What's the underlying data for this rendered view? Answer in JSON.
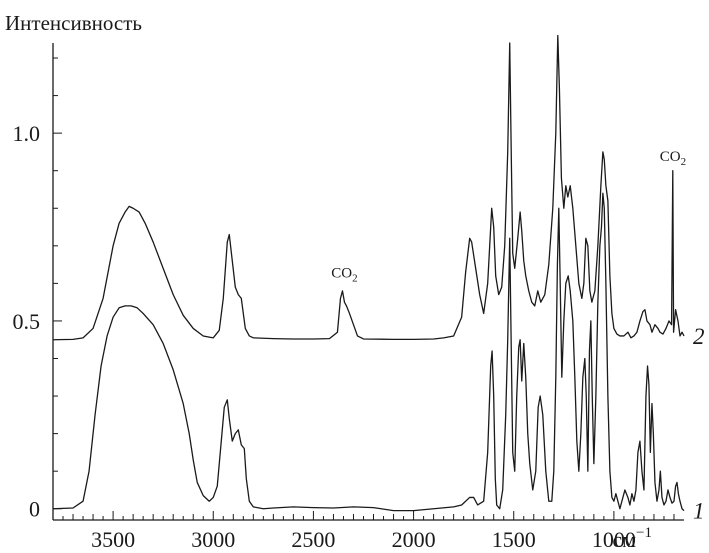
{
  "chart_data": {
    "type": "line",
    "title": "",
    "ylabel": "Интенсивность",
    "xunit": "см",
    "xunit_sup": "−1",
    "xlim": [
      3800,
      650
    ],
    "ylim": [
      -0.03,
      1.24
    ],
    "x_ticks": [
      3500,
      3000,
      2500,
      2000,
      1500,
      1000
    ],
    "y_ticks": [
      0,
      0.5,
      1.0
    ],
    "y_tick_labels": [
      "0",
      "0.5",
      "1.0"
    ],
    "grid": false,
    "legend": "none",
    "line_color": "#1a1a1a",
    "annotations": [
      {
        "text": "CO",
        "sub": "2",
        "x": 2345,
        "y": 0.595
      },
      {
        "text": "CO",
        "sub": "2",
        "x": 705,
        "y": 0.905
      }
    ],
    "series": [
      {
        "label": "2",
        "points": [
          [
            3800,
            0.45
          ],
          [
            3700,
            0.451
          ],
          [
            3650,
            0.455
          ],
          [
            3600,
            0.48
          ],
          [
            3550,
            0.56
          ],
          [
            3500,
            0.7
          ],
          [
            3470,
            0.76
          ],
          [
            3440,
            0.79
          ],
          [
            3420,
            0.805
          ],
          [
            3400,
            0.8
          ],
          [
            3370,
            0.79
          ],
          [
            3340,
            0.76
          ],
          [
            3300,
            0.71
          ],
          [
            3250,
            0.64
          ],
          [
            3200,
            0.57
          ],
          [
            3150,
            0.515
          ],
          [
            3100,
            0.48
          ],
          [
            3050,
            0.46
          ],
          [
            3000,
            0.455
          ],
          [
            2970,
            0.475
          ],
          [
            2950,
            0.56
          ],
          [
            2930,
            0.71
          ],
          [
            2920,
            0.73
          ],
          [
            2905,
            0.66
          ],
          [
            2890,
            0.59
          ],
          [
            2875,
            0.57
          ],
          [
            2860,
            0.56
          ],
          [
            2850,
            0.52
          ],
          [
            2840,
            0.48
          ],
          [
            2820,
            0.46
          ],
          [
            2800,
            0.455
          ],
          [
            2700,
            0.453
          ],
          [
            2600,
            0.452
          ],
          [
            2500,
            0.452
          ],
          [
            2420,
            0.453
          ],
          [
            2380,
            0.47
          ],
          [
            2365,
            0.56
          ],
          [
            2355,
            0.58
          ],
          [
            2345,
            0.55
          ],
          [
            2335,
            0.54
          ],
          [
            2320,
            0.52
          ],
          [
            2300,
            0.49
          ],
          [
            2280,
            0.46
          ],
          [
            2250,
            0.452
          ],
          [
            2100,
            0.451
          ],
          [
            2000,
            0.451
          ],
          [
            1900,
            0.452
          ],
          [
            1850,
            0.455
          ],
          [
            1800,
            0.46
          ],
          [
            1760,
            0.51
          ],
          [
            1740,
            0.63
          ],
          [
            1720,
            0.72
          ],
          [
            1710,
            0.71
          ],
          [
            1690,
            0.64
          ],
          [
            1670,
            0.57
          ],
          [
            1650,
            0.52
          ],
          [
            1630,
            0.6
          ],
          [
            1610,
            0.8
          ],
          [
            1600,
            0.75
          ],
          [
            1590,
            0.62
          ],
          [
            1575,
            0.57
          ],
          [
            1560,
            0.59
          ],
          [
            1545,
            0.7
          ],
          [
            1530,
            0.95
          ],
          [
            1520,
            1.24
          ],
          [
            1512,
            0.93
          ],
          [
            1505,
            0.68
          ],
          [
            1495,
            0.64
          ],
          [
            1480,
            0.72
          ],
          [
            1468,
            0.79
          ],
          [
            1460,
            0.74
          ],
          [
            1450,
            0.66
          ],
          [
            1440,
            0.62
          ],
          [
            1425,
            0.58
          ],
          [
            1410,
            0.55
          ],
          [
            1395,
            0.54
          ],
          [
            1380,
            0.58
          ],
          [
            1365,
            0.55
          ],
          [
            1345,
            0.57
          ],
          [
            1325,
            0.65
          ],
          [
            1305,
            0.8
          ],
          [
            1290,
            1.0
          ],
          [
            1280,
            1.26
          ],
          [
            1272,
            1.12
          ],
          [
            1262,
            0.88
          ],
          [
            1250,
            0.8
          ],
          [
            1240,
            0.86
          ],
          [
            1230,
            0.83
          ],
          [
            1218,
            0.86
          ],
          [
            1205,
            0.8
          ],
          [
            1190,
            0.7
          ],
          [
            1175,
            0.6
          ],
          [
            1160,
            0.56
          ],
          [
            1150,
            0.6
          ],
          [
            1140,
            0.72
          ],
          [
            1130,
            0.7
          ],
          [
            1120,
            0.58
          ],
          [
            1110,
            0.55
          ],
          [
            1095,
            0.58
          ],
          [
            1080,
            0.7
          ],
          [
            1065,
            0.86
          ],
          [
            1055,
            0.95
          ],
          [
            1048,
            0.93
          ],
          [
            1040,
            0.86
          ],
          [
            1030,
            0.82
          ],
          [
            1020,
            0.62
          ],
          [
            1010,
            0.52
          ],
          [
            1000,
            0.48
          ],
          [
            985,
            0.465
          ],
          [
            970,
            0.46
          ],
          [
            950,
            0.46
          ],
          [
            930,
            0.47
          ],
          [
            915,
            0.455
          ],
          [
            900,
            0.46
          ],
          [
            885,
            0.47
          ],
          [
            870,
            0.5
          ],
          [
            855,
            0.525
          ],
          [
            845,
            0.53
          ],
          [
            835,
            0.5
          ],
          [
            820,
            0.49
          ],
          [
            810,
            0.47
          ],
          [
            795,
            0.49
          ],
          [
            780,
            0.48
          ],
          [
            770,
            0.47
          ],
          [
            755,
            0.465
          ],
          [
            740,
            0.48
          ],
          [
            725,
            0.5
          ],
          [
            712,
            0.49
          ],
          [
            706,
            0.9
          ],
          [
            702,
            0.47
          ],
          [
            692,
            0.53
          ],
          [
            680,
            0.5
          ],
          [
            670,
            0.46
          ],
          [
            660,
            0.47
          ],
          [
            650,
            0.46
          ]
        ]
      },
      {
        "label": "1",
        "points": [
          [
            3800,
            0.0
          ],
          [
            3700,
            0.002
          ],
          [
            3650,
            0.02
          ],
          [
            3620,
            0.1
          ],
          [
            3590,
            0.25
          ],
          [
            3560,
            0.38
          ],
          [
            3530,
            0.46
          ],
          [
            3500,
            0.51
          ],
          [
            3470,
            0.535
          ],
          [
            3440,
            0.54
          ],
          [
            3410,
            0.54
          ],
          [
            3380,
            0.535
          ],
          [
            3350,
            0.52
          ],
          [
            3300,
            0.49
          ],
          [
            3250,
            0.44
          ],
          [
            3200,
            0.37
          ],
          [
            3150,
            0.28
          ],
          [
            3120,
            0.2
          ],
          [
            3100,
            0.13
          ],
          [
            3080,
            0.07
          ],
          [
            3050,
            0.035
          ],
          [
            3020,
            0.02
          ],
          [
            3000,
            0.03
          ],
          [
            2980,
            0.06
          ],
          [
            2960,
            0.18
          ],
          [
            2945,
            0.27
          ],
          [
            2930,
            0.29
          ],
          [
            2920,
            0.24
          ],
          [
            2905,
            0.18
          ],
          [
            2890,
            0.2
          ],
          [
            2875,
            0.21
          ],
          [
            2860,
            0.17
          ],
          [
            2845,
            0.16
          ],
          [
            2835,
            0.08
          ],
          [
            2820,
            0.02
          ],
          [
            2800,
            0.005
          ],
          [
            2750,
            0.0
          ],
          [
            2700,
            0.002
          ],
          [
            2600,
            0.005
          ],
          [
            2500,
            0.003
          ],
          [
            2400,
            0.002
          ],
          [
            2300,
            0.005
          ],
          [
            2200,
            0.003
          ],
          [
            2100,
            -0.005
          ],
          [
            2000,
            -0.005
          ],
          [
            1900,
            0.0
          ],
          [
            1800,
            0.005
          ],
          [
            1760,
            0.01
          ],
          [
            1720,
            0.03
          ],
          [
            1700,
            0.03
          ],
          [
            1680,
            0.01
          ],
          [
            1650,
            0.02
          ],
          [
            1630,
            0.15
          ],
          [
            1615,
            0.38
          ],
          [
            1608,
            0.42
          ],
          [
            1600,
            0.3
          ],
          [
            1592,
            0.08
          ],
          [
            1585,
            0.01
          ],
          [
            1570,
            0.0
          ],
          [
            1555,
            0.05
          ],
          [
            1540,
            0.25
          ],
          [
            1530,
            0.45
          ],
          [
            1520,
            0.72
          ],
          [
            1513,
            0.45
          ],
          [
            1505,
            0.15
          ],
          [
            1495,
            0.1
          ],
          [
            1485,
            0.3
          ],
          [
            1475,
            0.43
          ],
          [
            1468,
            0.45
          ],
          [
            1460,
            0.34
          ],
          [
            1450,
            0.44
          ],
          [
            1440,
            0.35
          ],
          [
            1430,
            0.2
          ],
          [
            1420,
            0.12
          ],
          [
            1405,
            0.05
          ],
          [
            1390,
            0.1
          ],
          [
            1378,
            0.27
          ],
          [
            1368,
            0.3
          ],
          [
            1355,
            0.25
          ],
          [
            1340,
            0.1
          ],
          [
            1325,
            0.02
          ],
          [
            1310,
            0.02
          ],
          [
            1300,
            0.1
          ],
          [
            1290,
            0.35
          ],
          [
            1282,
            0.65
          ],
          [
            1275,
            0.8
          ],
          [
            1268,
            0.6
          ],
          [
            1260,
            0.35
          ],
          [
            1250,
            0.5
          ],
          [
            1240,
            0.6
          ],
          [
            1228,
            0.62
          ],
          [
            1218,
            0.58
          ],
          [
            1205,
            0.5
          ],
          [
            1195,
            0.35
          ],
          [
            1185,
            0.18
          ],
          [
            1175,
            0.1
          ],
          [
            1165,
            0.2
          ],
          [
            1155,
            0.35
          ],
          [
            1145,
            0.4
          ],
          [
            1138,
            0.3
          ],
          [
            1130,
            0.1
          ],
          [
            1122,
            0.42
          ],
          [
            1115,
            0.5
          ],
          [
            1108,
            0.3
          ],
          [
            1100,
            0.12
          ],
          [
            1090,
            0.3
          ],
          [
            1080,
            0.55
          ],
          [
            1070,
            0.7
          ],
          [
            1062,
            0.75
          ],
          [
            1055,
            0.84
          ],
          [
            1048,
            0.8
          ],
          [
            1040,
            0.6
          ],
          [
            1030,
            0.3
          ],
          [
            1020,
            0.1
          ],
          [
            1010,
            0.03
          ],
          [
            1000,
            0.02
          ],
          [
            990,
            0.04
          ],
          [
            980,
            0.02
          ],
          [
            970,
            0.0
          ],
          [
            960,
            0.02
          ],
          [
            945,
            0.05
          ],
          [
            930,
            0.03
          ],
          [
            920,
            0.01
          ],
          [
            910,
            0.04
          ],
          [
            900,
            0.02
          ],
          [
            890,
            0.05
          ],
          [
            880,
            0.15
          ],
          [
            870,
            0.18
          ],
          [
            860,
            0.1
          ],
          [
            850,
            0.05
          ],
          [
            840,
            0.3
          ],
          [
            832,
            0.38
          ],
          [
            825,
            0.33
          ],
          [
            818,
            0.15
          ],
          [
            810,
            0.28
          ],
          [
            803,
            0.2
          ],
          [
            795,
            0.07
          ],
          [
            785,
            0.02
          ],
          [
            775,
            0.05
          ],
          [
            768,
            0.1
          ],
          [
            760,
            0.03
          ],
          [
            750,
            0.01
          ],
          [
            740,
            0.02
          ],
          [
            730,
            0.05
          ],
          [
            720,
            0.03
          ],
          [
            710,
            0.015
          ],
          [
            700,
            0.02
          ],
          [
            692,
            0.06
          ],
          [
            685,
            0.07
          ],
          [
            678,
            0.04
          ],
          [
            670,
            0.02
          ],
          [
            660,
            0.0
          ],
          [
            650,
            -0.005
          ]
        ]
      }
    ]
  }
}
